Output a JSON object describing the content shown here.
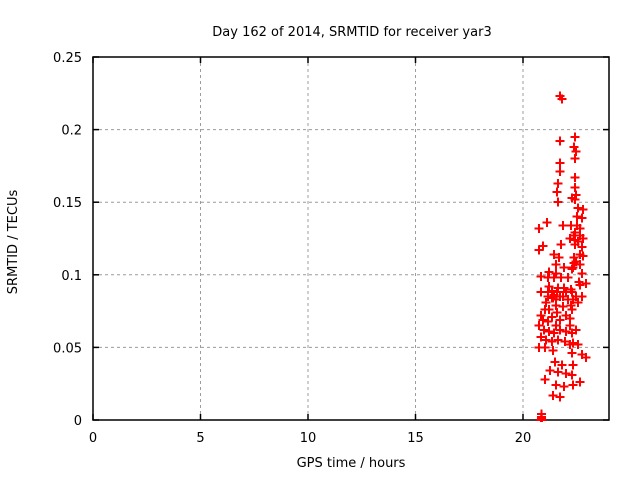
{
  "window": {
    "background": "#ffffff"
  },
  "chart_data": {
    "type": "scatter",
    "title": "Day 162 of 2014, SRMTID for receiver yar3",
    "xlabel": "GPS time / hours",
    "ylabel": "SRMTID / TECUs",
    "xlim": [
      0,
      24
    ],
    "ylim": [
      0,
      0.25
    ],
    "xticks": [
      {
        "v": 0,
        "label": "0"
      },
      {
        "v": 5,
        "label": "5"
      },
      {
        "v": 10,
        "label": "10"
      },
      {
        "v": 15,
        "label": "15"
      },
      {
        "v": 20,
        "label": "20"
      }
    ],
    "yticks": [
      {
        "v": 0,
        "label": "0"
      },
      {
        "v": 0.05,
        "label": "0.05"
      },
      {
        "v": 0.1,
        "label": "0.1"
      },
      {
        "v": 0.15,
        "label": "0.15"
      },
      {
        "v": 0.2,
        "label": "0.2"
      },
      {
        "v": 0.25,
        "label": "0.25"
      }
    ],
    "grid": true,
    "legend": false,
    "marker": "plus",
    "marker_color": "#ff0000",
    "grid_color": "#9c9c9c",
    "axis_color": "#000000",
    "series": [
      {
        "name": "SRMTID",
        "color": "#ff0000",
        "points": [
          [
            21.72,
            0.223
          ],
          [
            21.81,
            0.221
          ],
          [
            21.72,
            0.192
          ],
          [
            22.42,
            0.195
          ],
          [
            22.37,
            0.188
          ],
          [
            22.47,
            0.185
          ],
          [
            22.42,
            0.18
          ],
          [
            21.72,
            0.177
          ],
          [
            21.72,
            0.171
          ],
          [
            22.42,
            0.167
          ],
          [
            21.63,
            0.163
          ],
          [
            22.42,
            0.16
          ],
          [
            21.58,
            0.157
          ],
          [
            22.47,
            0.155
          ],
          [
            22.28,
            0.153
          ],
          [
            22.42,
            0.152
          ],
          [
            21.63,
            0.15
          ],
          [
            22.56,
            0.146
          ],
          [
            22.79,
            0.145
          ],
          [
            22.51,
            0.14
          ],
          [
            22.74,
            0.139
          ],
          [
            21.12,
            0.136
          ],
          [
            22.51,
            0.134
          ],
          [
            21.86,
            0.134
          ],
          [
            22.23,
            0.134
          ],
          [
            20.74,
            0.132
          ],
          [
            22.65,
            0.132
          ],
          [
            22.42,
            0.129
          ],
          [
            22.37,
            0.127
          ],
          [
            22.65,
            0.127
          ],
          [
            22.19,
            0.125
          ],
          [
            22.79,
            0.125
          ],
          [
            22.42,
            0.124
          ],
          [
            22.56,
            0.123
          ],
          [
            21.77,
            0.121
          ],
          [
            22.42,
            0.121
          ],
          [
            20.93,
            0.12
          ],
          [
            22.74,
            0.119
          ],
          [
            20.74,
            0.117
          ],
          [
            21.44,
            0.114
          ],
          [
            21.67,
            0.112
          ],
          [
            22.37,
            0.112
          ],
          [
            22.65,
            0.114
          ],
          [
            22.79,
            0.113
          ],
          [
            22.47,
            0.109
          ],
          [
            22.37,
            0.108
          ],
          [
            21.53,
            0.107
          ],
          [
            22.65,
            0.107
          ],
          [
            21.91,
            0.105
          ],
          [
            22.33,
            0.105
          ],
          [
            22.28,
            0.104
          ],
          [
            21.21,
            0.102
          ],
          [
            21.53,
            0.101
          ],
          [
            22.74,
            0.101
          ],
          [
            20.84,
            0.099
          ],
          [
            21.16,
            0.098
          ],
          [
            21.44,
            0.098
          ],
          [
            21.77,
            0.098
          ],
          [
            22.09,
            0.098
          ],
          [
            22.6,
            0.095
          ],
          [
            22.93,
            0.094
          ],
          [
            22.65,
            0.093
          ],
          [
            21.21,
            0.092
          ],
          [
            21.63,
            0.091
          ],
          [
            21.91,
            0.091
          ],
          [
            22.23,
            0.09
          ],
          [
            21.35,
            0.089
          ],
          [
            20.84,
            0.088
          ],
          [
            21.16,
            0.088
          ],
          [
            21.58,
            0.088
          ],
          [
            22.0,
            0.088
          ],
          [
            22.28,
            0.088
          ],
          [
            21.44,
            0.086
          ],
          [
            21.86,
            0.085
          ],
          [
            22.47,
            0.085
          ],
          [
            22.74,
            0.085
          ],
          [
            21.16,
            0.085
          ],
          [
            21.72,
            0.085
          ],
          [
            21.35,
            0.084
          ],
          [
            21.4,
            0.084
          ],
          [
            21.53,
            0.083
          ],
          [
            22.09,
            0.083
          ],
          [
            22.33,
            0.083
          ],
          [
            22.56,
            0.081
          ],
          [
            21.07,
            0.081
          ],
          [
            21.53,
            0.079
          ],
          [
            21.86,
            0.078
          ],
          [
            22.23,
            0.079
          ],
          [
            21.21,
            0.076
          ],
          [
            21.02,
            0.076
          ],
          [
            22.28,
            0.076
          ],
          [
            21.58,
            0.074
          ],
          [
            20.84,
            0.072
          ],
          [
            22.0,
            0.072
          ],
          [
            21.35,
            0.071
          ],
          [
            22.19,
            0.07
          ],
          [
            21.72,
            0.069
          ],
          [
            20.93,
            0.069
          ],
          [
            21.16,
            0.068
          ],
          [
            21.53,
            0.065
          ],
          [
            20.74,
            0.065
          ],
          [
            22.19,
            0.065
          ],
          [
            20.98,
            0.062
          ],
          [
            21.72,
            0.062
          ],
          [
            22.47,
            0.062
          ],
          [
            21.21,
            0.061
          ],
          [
            22.0,
            0.061
          ],
          [
            21.44,
            0.06
          ],
          [
            22.28,
            0.06
          ],
          [
            20.84,
            0.057
          ],
          [
            21.07,
            0.055
          ],
          [
            21.63,
            0.055
          ],
          [
            21.35,
            0.054
          ],
          [
            21.95,
            0.054
          ],
          [
            22.33,
            0.053
          ],
          [
            22.19,
            0.052
          ],
          [
            22.56,
            0.052
          ],
          [
            20.74,
            0.05
          ],
          [
            21.02,
            0.05
          ],
          [
            21.4,
            0.048
          ],
          [
            22.28,
            0.046
          ],
          [
            22.74,
            0.045
          ],
          [
            22.93,
            0.043
          ],
          [
            21.49,
            0.04
          ],
          [
            21.81,
            0.038
          ],
          [
            22.33,
            0.038
          ],
          [
            21.26,
            0.034
          ],
          [
            21.63,
            0.033
          ],
          [
            22.0,
            0.032
          ],
          [
            22.28,
            0.031
          ],
          [
            21.02,
            0.028
          ],
          [
            22.65,
            0.026
          ],
          [
            21.53,
            0.024
          ],
          [
            22.33,
            0.024
          ],
          [
            21.91,
            0.023
          ],
          [
            21.4,
            0.017
          ],
          [
            21.72,
            0.016
          ],
          [
            20.84,
            0.0
          ],
          [
            20.86,
            0.002
          ],
          [
            20.88,
            0.0
          ],
          [
            20.86,
            0.004
          ],
          [
            20.86,
            0.001
          ]
        ]
      }
    ]
  }
}
